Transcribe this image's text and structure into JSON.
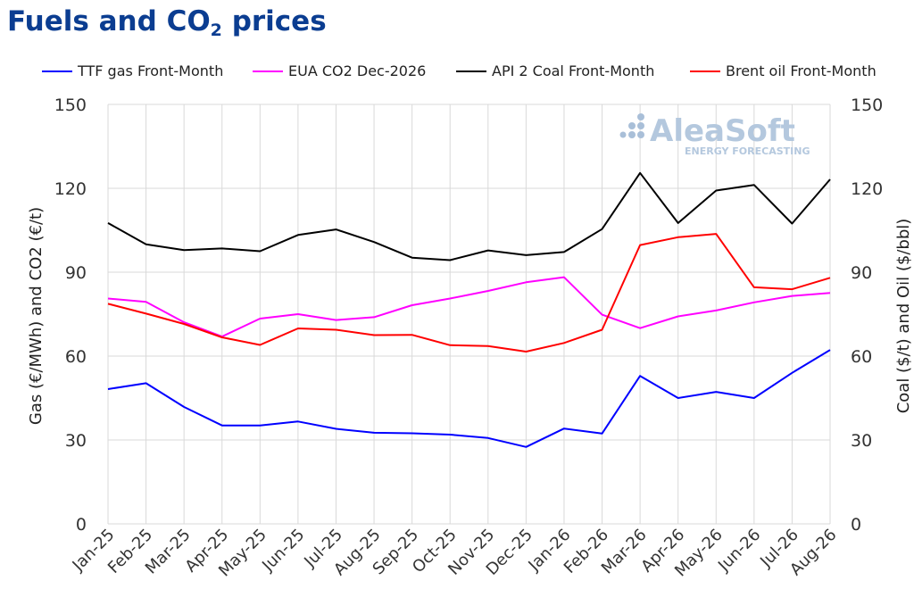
{
  "chart_data": {
    "type": "line",
    "title": "Fuels and CO",
    "title_subscript": "2",
    "title_suffix": " prices",
    "ylabel_left": "Gas (€/MWh) and CO2 (€/t)",
    "ylabel_right": "Coal ($/t) and Oil ($/bbl)",
    "ylim": [
      0,
      150
    ],
    "yticks": [
      0,
      30,
      60,
      90,
      120,
      150
    ],
    "grid": true,
    "legend_position": "top",
    "categories": [
      "Jan-25",
      "Feb-25",
      "Mar-25",
      "Apr-25",
      "May-25",
      "Jun-25",
      "Jul-25",
      "Aug-25",
      "Sep-25",
      "Oct-25",
      "Nov-25",
      "Dec-25",
      "Jan-26",
      "Feb-26",
      "Mar-26",
      "Apr-26",
      "May-26",
      "Jun-26",
      "Jul-26",
      "Aug-26"
    ],
    "series": [
      {
        "name": "TTF gas Front-Month",
        "axis": "left",
        "color": "#0000ff",
        "values": [
          48.2,
          50.3,
          41.8,
          35.2,
          35.2,
          36.6,
          34.0,
          32.6,
          32.4,
          31.9,
          30.7,
          27.5,
          34.1,
          32.3,
          52.9,
          45.0,
          47.2,
          45.0,
          54.0,
          62.2
        ]
      },
      {
        "name": "EUA CO2 Dec-2026",
        "axis": "left",
        "color": "#ff00ff",
        "values": [
          80.6,
          79.4,
          72.1,
          67.0,
          73.4,
          75.0,
          72.9,
          73.9,
          78.2,
          80.6,
          83.3,
          86.4,
          88.2,
          74.8,
          70.0,
          74.2,
          76.3,
          79.2,
          81.5,
          82.6
        ]
      },
      {
        "name": "API 2 Coal Front-Month",
        "axis": "right",
        "color": "#000000",
        "values": [
          107.6,
          100.0,
          97.9,
          98.5,
          97.5,
          103.3,
          105.3,
          100.8,
          95.2,
          94.3,
          97.8,
          96.1,
          97.2,
          105.4,
          125.5,
          107.6,
          119.2,
          121.2,
          107.4,
          123.2
        ]
      },
      {
        "name": "Brent oil Front-Month",
        "axis": "right",
        "color": "#ff0000",
        "values": [
          78.7,
          75.2,
          71.5,
          66.7,
          64.0,
          69.9,
          69.4,
          67.5,
          67.6,
          63.9,
          63.6,
          61.6,
          64.7,
          69.4,
          99.7,
          102.5,
          103.7,
          84.6,
          83.9,
          88.0
        ]
      }
    ]
  },
  "watermark": {
    "brand": "AleaSoft",
    "tagline": "ENERGY FORECASTING"
  }
}
